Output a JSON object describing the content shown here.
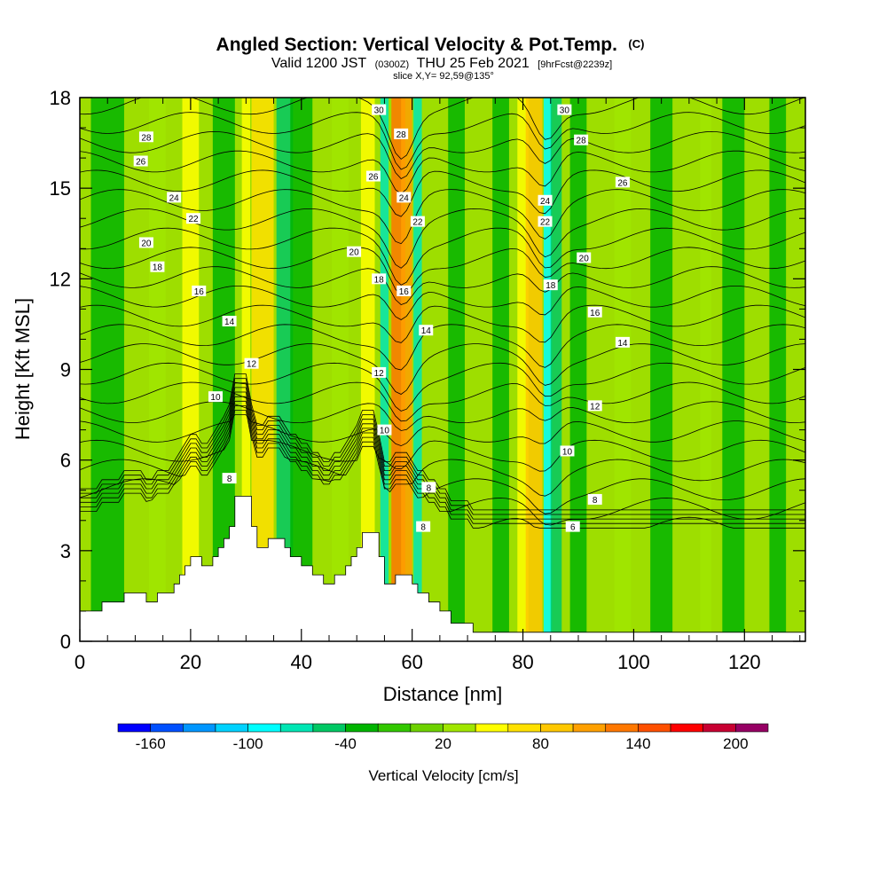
{
  "header": {
    "title": "Angled Section: Vertical Velocity & Pot.Temp.",
    "title_unit": "(C)",
    "valid_prefix": "Valid 1200 JST",
    "valid_utc": "(0300Z)",
    "valid_date": "THU 25 Feb 2021",
    "forecast": "[9hrFcst@2239z]",
    "slice": "slice X,Y= 92,59@135°"
  },
  "chart_data": {
    "type": "heatmap",
    "title": "Angled Section: Vertical Velocity & Pot.Temp.",
    "xlabel": "Distance [nm]",
    "ylabel": "Height [Kft MSL]",
    "xlim": [
      0,
      131
    ],
    "ylim": [
      0,
      18
    ],
    "x_ticks": [
      0,
      20,
      40,
      60,
      80,
      100,
      120
    ],
    "x_tick_labels": [
      "0",
      "20",
      "40",
      "60",
      "80",
      "100",
      "120"
    ],
    "y_ticks": [
      0,
      3,
      6,
      9,
      12,
      15,
      18
    ],
    "y_tick_labels": [
      "0",
      "3",
      "6",
      "9",
      "12",
      "15",
      "18"
    ],
    "terrain_kft": [
      [
        0,
        1.0
      ],
      [
        4,
        1.0
      ],
      [
        4,
        1.3
      ],
      [
        8,
        1.3
      ],
      [
        8,
        1.6
      ],
      [
        12,
        1.6
      ],
      [
        12,
        1.3
      ],
      [
        14,
        1.3
      ],
      [
        14,
        1.6
      ],
      [
        17,
        1.6
      ],
      [
        17,
        1.9
      ],
      [
        18,
        1.9
      ],
      [
        18,
        2.2
      ],
      [
        19,
        2.2
      ],
      [
        19,
        2.5
      ],
      [
        20,
        2.5
      ],
      [
        20,
        2.8
      ],
      [
        22,
        2.8
      ],
      [
        22,
        2.5
      ],
      [
        24,
        2.5
      ],
      [
        24,
        2.8
      ],
      [
        25,
        2.8
      ],
      [
        25,
        3.1
      ],
      [
        26,
        3.1
      ],
      [
        26,
        3.4
      ],
      [
        27,
        3.4
      ],
      [
        27,
        3.8
      ],
      [
        28,
        3.8
      ],
      [
        28,
        4.8
      ],
      [
        31,
        4.8
      ],
      [
        31,
        3.8
      ],
      [
        32,
        3.8
      ],
      [
        32,
        3.1
      ],
      [
        34,
        3.1
      ],
      [
        34,
        3.4
      ],
      [
        37,
        3.4
      ],
      [
        37,
        3.1
      ],
      [
        38,
        3.1
      ],
      [
        38,
        2.8
      ],
      [
        40,
        2.8
      ],
      [
        40,
        2.5
      ],
      [
        42,
        2.5
      ],
      [
        42,
        2.2
      ],
      [
        44,
        2.2
      ],
      [
        44,
        1.9
      ],
      [
        46,
        1.9
      ],
      [
        46,
        2.2
      ],
      [
        48,
        2.2
      ],
      [
        48,
        2.5
      ],
      [
        49,
        2.5
      ],
      [
        49,
        2.8
      ],
      [
        50,
        2.8
      ],
      [
        50,
        3.1
      ],
      [
        51,
        3.1
      ],
      [
        51,
        3.6
      ],
      [
        54,
        3.6
      ],
      [
        54,
        2.8
      ],
      [
        55,
        2.8
      ],
      [
        55,
        1.9
      ],
      [
        57,
        1.9
      ],
      [
        57,
        2.2
      ],
      [
        60,
        2.2
      ],
      [
        60,
        1.9
      ],
      [
        61,
        1.9
      ],
      [
        61,
        1.6
      ],
      [
        63,
        1.6
      ],
      [
        63,
        1.3
      ],
      [
        65,
        1.3
      ],
      [
        65,
        1.0
      ],
      [
        67,
        1.0
      ],
      [
        67,
        0.6
      ],
      [
        71,
        0.6
      ],
      [
        71,
        0.3
      ],
      [
        131,
        0.3
      ]
    ],
    "velocity_columns": [
      {
        "x": 5,
        "w": 6,
        "v": -40
      },
      {
        "x": 14,
        "w": 3,
        "v": 20
      },
      {
        "x": 20,
        "w": 3,
        "v": 40
      },
      {
        "x": 26,
        "w": 4,
        "v": -40
      },
      {
        "x": 30,
        "w": 1.5,
        "v": 40
      },
      {
        "x": 33,
        "w": 4,
        "v": 60
      },
      {
        "x": 37,
        "w": 3,
        "v": -60
      },
      {
        "x": 40,
        "w": 4,
        "v": -40
      },
      {
        "x": 47,
        "w": 3,
        "v": 20
      },
      {
        "x": 52,
        "w": 2.5,
        "v": 40
      },
      {
        "x": 55,
        "w": 1.5,
        "v": -80
      },
      {
        "x": 57.5,
        "w": 2.5,
        "v": 120
      },
      {
        "x": 59,
        "w": 2,
        "v": 100
      },
      {
        "x": 61,
        "w": 1.5,
        "v": -80
      },
      {
        "x": 68,
        "w": 3,
        "v": -40
      },
      {
        "x": 76,
        "w": 3,
        "v": -40
      },
      {
        "x": 80,
        "w": 2,
        "v": 40
      },
      {
        "x": 82,
        "w": 3,
        "v": 80
      },
      {
        "x": 84.5,
        "w": 1.5,
        "v": -100
      },
      {
        "x": 86,
        "w": 2,
        "v": -60
      },
      {
        "x": 90,
        "w": 3,
        "v": -40
      },
      {
        "x": 98,
        "w": 3,
        "v": 20
      },
      {
        "x": 105,
        "w": 4,
        "v": -40
      },
      {
        "x": 113,
        "w": 2,
        "v": 20
      },
      {
        "x": 118,
        "w": 4,
        "v": -40
      },
      {
        "x": 126,
        "w": 3,
        "v": -40
      }
    ],
    "isentropes_theta_c": [
      4,
      5,
      6,
      7,
      8,
      9,
      10,
      11,
      12,
      13,
      14,
      15,
      16,
      17,
      18,
      19,
      20,
      21,
      22,
      23,
      24,
      25,
      26,
      27,
      28,
      29,
      30
    ],
    "contour_labels": [
      {
        "text": "28",
        "x": 12,
        "y": 16.7
      },
      {
        "text": "26",
        "x": 11,
        "y": 15.9
      },
      {
        "text": "24",
        "x": 17,
        "y": 14.7
      },
      {
        "text": "22",
        "x": 20.5,
        "y": 14.0
      },
      {
        "text": "20",
        "x": 12,
        "y": 13.2
      },
      {
        "text": "18",
        "x": 14,
        "y": 12.4
      },
      {
        "text": "16",
        "x": 21.5,
        "y": 11.6
      },
      {
        "text": "14",
        "x": 27,
        "y": 10.6
      },
      {
        "text": "12",
        "x": 31,
        "y": 9.2
      },
      {
        "text": "10",
        "x": 24.5,
        "y": 8.1
      },
      {
        "text": "8",
        "x": 27,
        "y": 5.4
      },
      {
        "text": "30",
        "x": 54,
        "y": 17.6
      },
      {
        "text": "28",
        "x": 58,
        "y": 16.8
      },
      {
        "text": "26",
        "x": 53,
        "y": 15.4
      },
      {
        "text": "24",
        "x": 58.5,
        "y": 14.7
      },
      {
        "text": "22",
        "x": 61,
        "y": 13.9
      },
      {
        "text": "20",
        "x": 49.5,
        "y": 12.9
      },
      {
        "text": "18",
        "x": 54,
        "y": 12.0
      },
      {
        "text": "16",
        "x": 58.5,
        "y": 11.6
      },
      {
        "text": "14",
        "x": 62.5,
        "y": 10.3
      },
      {
        "text": "12",
        "x": 54,
        "y": 8.9
      },
      {
        "text": "10",
        "x": 55,
        "y": 7.0
      },
      {
        "text": "8",
        "x": 63,
        "y": 5.1
      },
      {
        "text": "8",
        "x": 62,
        "y": 3.8
      },
      {
        "text": "30",
        "x": 87.5,
        "y": 17.6
      },
      {
        "text": "28",
        "x": 90.5,
        "y": 16.6
      },
      {
        "text": "26",
        "x": 98,
        "y": 15.2
      },
      {
        "text": "24",
        "x": 84,
        "y": 14.6
      },
      {
        "text": "22",
        "x": 84,
        "y": 13.9
      },
      {
        "text": "20",
        "x": 91,
        "y": 12.7
      },
      {
        "text": "18",
        "x": 85,
        "y": 11.8
      },
      {
        "text": "16",
        "x": 93,
        "y": 10.9
      },
      {
        "text": "14",
        "x": 98,
        "y": 9.9
      },
      {
        "text": "12",
        "x": 93,
        "y": 7.8
      },
      {
        "text": "10",
        "x": 88,
        "y": 6.3
      },
      {
        "text": "8",
        "x": 93,
        "y": 4.7
      },
      {
        "text": "6",
        "x": 89,
        "y": 3.8
      }
    ]
  },
  "colorbar": {
    "title": "Vertical Velocity [cm/s]",
    "levels": [
      -180,
      -160,
      -140,
      -120,
      -100,
      -80,
      -60,
      -40,
      -20,
      0,
      20,
      40,
      60,
      80,
      100,
      120,
      140,
      160,
      180,
      200,
      220
    ],
    "colors": [
      "#0000ff",
      "#0050ff",
      "#0096ff",
      "#00d2ff",
      "#00ffff",
      "#00e6b4",
      "#00c864",
      "#00b400",
      "#32c800",
      "#6ed200",
      "#a0e600",
      "#ffff00",
      "#ffe100",
      "#ffc800",
      "#ffa000",
      "#ff7800",
      "#ff5000",
      "#ff0000",
      "#c80032",
      "#960064",
      "#640096"
    ],
    "tick_values": [
      -160,
      -100,
      -40,
      20,
      80,
      140,
      200
    ],
    "tick_labels": [
      "-160",
      "-100",
      "-40",
      "20",
      "80",
      "140",
      "200"
    ]
  }
}
